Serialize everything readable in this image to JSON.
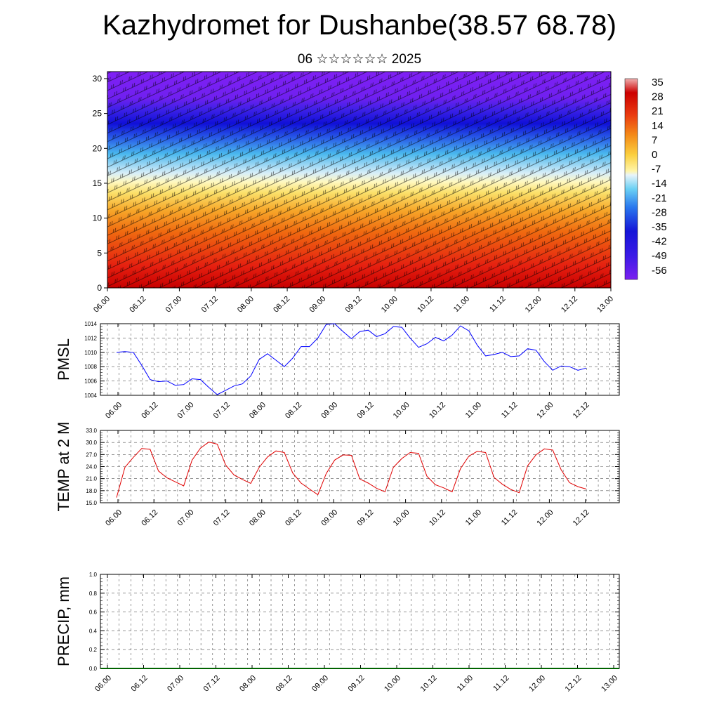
{
  "header": {
    "title": "Kazhydromet for Dushanbe(38.57 68.78)",
    "subtitle": "06 ☆☆☆☆☆☆ 2025"
  },
  "colors": {
    "pmsl_line": "#0000ff",
    "temp_line": "#e00000",
    "precip_line": "#006400",
    "grid": "#555555"
  },
  "colorbar": {
    "labels": [
      "35",
      "28",
      "21",
      "14",
      "7",
      "0",
      "-7",
      "-14",
      "-21",
      "-28",
      "-35",
      "-42",
      "-49",
      "-56"
    ]
  },
  "chart_data": [
    {
      "type": "heatmap",
      "title": "",
      "xlabel": "",
      "ylabel": "",
      "x_ticks": [
        "06.00",
        "06.12",
        "07.00",
        "07.12",
        "08.00",
        "08.12",
        "09.00",
        "09.12",
        "10.00",
        "10.12",
        "11.00",
        "11.12",
        "12.00",
        "12.12",
        "13.00"
      ],
      "y_ticks": [
        "0",
        "5",
        "10",
        "15",
        "20",
        "25",
        "30"
      ],
      "ylim": [
        0,
        31
      ],
      "colorbar_range": [
        -60,
        38
      ],
      "overlay": "wind barbs",
      "description_levels": {
        "surface_temp_range": [
          20,
          35
        ],
        "freezing_level_km": 16,
        "tropopause_cold_core_km": 24.5,
        "min_temp": -60
      }
    },
    {
      "type": "line",
      "ylabel": "PMSL",
      "x_ticks": [
        "06.00",
        "06.12",
        "07.00",
        "07.12",
        "08.00",
        "08.12",
        "09.00",
        "09.12",
        "10.00",
        "10.12",
        "11.00",
        "11.12",
        "12.00",
        "12.12",
        "13.00"
      ],
      "y_ticks": [
        "1004",
        "1006",
        "1008",
        "1010",
        "1012",
        "1014"
      ],
      "ylim": [
        1004,
        1014
      ],
      "series": [
        {
          "values": [
            1010.0,
            1010.1,
            1010.0,
            1008.2,
            1006.2,
            1005.9,
            1006.0,
            1005.4,
            1005.5,
            1006.3,
            1006.2,
            1005.1,
            1004.1,
            1004.7,
            1005.3,
            1005.6,
            1006.7,
            1009.0,
            1009.8,
            1008.9,
            1008.0,
            1009.2,
            1010.8,
            1010.8,
            1012.0,
            1013.9,
            1014.0,
            1012.9,
            1011.9,
            1012.9,
            1013.1,
            1012.2,
            1012.6,
            1013.6,
            1013.5,
            1012.0,
            1010.7,
            1011.2,
            1012.1,
            1011.6,
            1012.4,
            1013.7,
            1013.0,
            1011.0,
            1009.5,
            1009.7,
            1010.0,
            1009.4,
            1009.5,
            1010.5,
            1010.3,
            1008.7,
            1007.5,
            1008.1,
            1008.0,
            1007.5,
            1007.8
          ]
        }
      ]
    },
    {
      "type": "line",
      "ylabel": "TEMP at 2 M",
      "x_ticks": [
        "06.00",
        "06.12",
        "07.00",
        "07.12",
        "08.00",
        "08.12",
        "09.00",
        "09.12",
        "10.00",
        "10.12",
        "11.00",
        "11.12",
        "12.00",
        "12.12",
        "13.00"
      ],
      "y_ticks": [
        "15.0",
        "18.0",
        "21.0",
        "24.0",
        "27.0",
        "30.0",
        "33.0"
      ],
      "ylim": [
        15,
        33
      ],
      "series": [
        {
          "values": [
            16.3,
            23.8,
            26.3,
            28.5,
            28.3,
            22.9,
            21.2,
            20.2,
            19.2,
            25.6,
            28.6,
            30.1,
            29.6,
            24.4,
            21.9,
            20.8,
            19.8,
            23.8,
            26.4,
            27.9,
            27.5,
            22.4,
            19.9,
            18.4,
            17.0,
            22.3,
            25.6,
            26.9,
            26.8,
            20.9,
            19.9,
            18.6,
            17.7,
            23.8,
            26.0,
            27.5,
            27.3,
            21.6,
            19.5,
            18.7,
            17.7,
            23.5,
            26.6,
            27.8,
            27.5,
            21.3,
            19.6,
            18.3,
            17.5,
            24.2,
            26.9,
            28.4,
            28.1,
            23.2,
            20.0,
            19.0,
            18.4
          ]
        }
      ]
    },
    {
      "type": "line",
      "ylabel": "PRECIP, mm",
      "x_ticks": [
        "06.00",
        "06.12",
        "07.00",
        "07.12",
        "08.00",
        "08.12",
        "09.00",
        "09.12",
        "10.00",
        "10.12",
        "11.00",
        "11.12",
        "12.00",
        "12.12",
        "13.00"
      ],
      "y_ticks": [
        "0.0",
        "0.2",
        "0.4",
        "0.6",
        "0.8",
        "1.0"
      ],
      "ylim": [
        0,
        1
      ],
      "series": [
        {
          "values": [
            0,
            0,
            0,
            0,
            0,
            0,
            0,
            0,
            0,
            0,
            0,
            0,
            0,
            0,
            0,
            0,
            0,
            0,
            0,
            0,
            0,
            0,
            0,
            0,
            0,
            0,
            0,
            0,
            0
          ]
        }
      ]
    }
  ]
}
